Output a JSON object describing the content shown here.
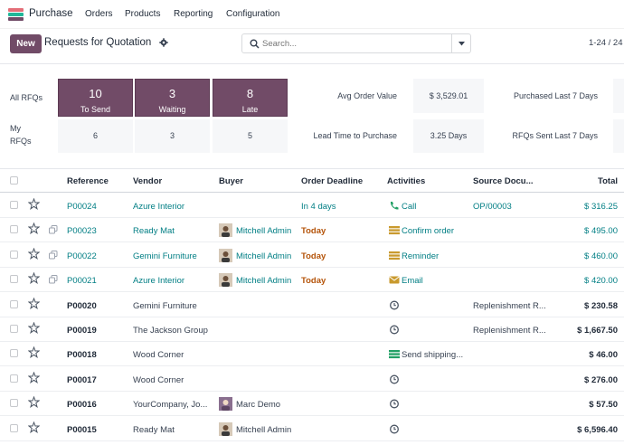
{
  "navbar": {
    "app_name": "Purchase",
    "menu": [
      "Orders",
      "Products",
      "Reporting",
      "Configuration"
    ]
  },
  "control_panel": {
    "new_label": "New",
    "title": "Requests for Quotation",
    "search_placeholder": "Search...",
    "pager": "1-24 / 24"
  },
  "dashboard": {
    "all_rfqs_label": "All RFQs",
    "my_rfqs_label_line1": "My",
    "my_rfqs_label_line2": "RFQs",
    "tiles": [
      {
        "count": "10",
        "label": "To Send"
      },
      {
        "count": "3",
        "label": "Waiting"
      },
      {
        "count": "8",
        "label": "Late"
      }
    ],
    "my_counts": [
      "6",
      "3",
      "5"
    ],
    "stats": {
      "avg_order_value_label": "Avg Order Value",
      "avg_order_value": "$ 3,529.01",
      "purchased_last_7_label": "Purchased Last 7 Days",
      "lead_time_label": "Lead Time to Purchase",
      "lead_time": "3.25 Days",
      "rfqs_sent_label": "RFQs Sent Last 7 Days"
    }
  },
  "table": {
    "headers": {
      "reference": "Reference",
      "vendor": "Vendor",
      "buyer": "Buyer",
      "deadline": "Order Deadline",
      "activities": "Activities",
      "source": "Source Docu...",
      "total": "Total"
    },
    "rows": [
      {
        "ref": "P00024",
        "vendor": "Azure Interior",
        "buyer": "",
        "deadline": "In 4 days",
        "activity": "Call",
        "activity_icon": "phone-icon",
        "source": "OP/00003",
        "total": "$ 316.25"
      },
      {
        "ref": "P00023",
        "vendor": "Ready Mat",
        "buyer": "Mitchell Admin",
        "deadline": "Today",
        "activity": "Confirm order",
        "activity_icon": "list-icon",
        "source": "",
        "total": "$ 495.00"
      },
      {
        "ref": "P00022",
        "vendor": "Gemini Furniture",
        "buyer": "Mitchell Admin",
        "deadline": "Today",
        "activity": "Reminder",
        "activity_icon": "list-icon",
        "source": "",
        "total": "$ 460.00"
      },
      {
        "ref": "P00021",
        "vendor": "Azure Interior",
        "buyer": "Mitchell Admin",
        "deadline": "Today",
        "activity": "Email",
        "activity_icon": "envelope-icon",
        "source": "",
        "total": "$ 420.00"
      },
      {
        "ref": "P00020",
        "vendor": "Gemini Furniture",
        "buyer": "",
        "deadline": "",
        "activity": "",
        "activity_icon": "clock-icon",
        "source": "Replenishment R...",
        "total": "$ 230.58"
      },
      {
        "ref": "P00019",
        "vendor": "The Jackson Group",
        "buyer": "",
        "deadline": "",
        "activity": "",
        "activity_icon": "clock-icon",
        "source": "Replenishment R...",
        "total": "$ 1,667.50"
      },
      {
        "ref": "P00018",
        "vendor": "Wood Corner",
        "buyer": "",
        "deadline": "",
        "activity": "Send shipping...",
        "activity_icon": "list-green-icon",
        "source": "",
        "total": "$ 46.00"
      },
      {
        "ref": "P00017",
        "vendor": "Wood Corner",
        "buyer": "",
        "deadline": "",
        "activity": "",
        "activity_icon": "clock-icon",
        "source": "",
        "total": "$ 276.00"
      },
      {
        "ref": "P00016",
        "vendor": "YourCompany, Jo...",
        "buyer": "Marc Demo",
        "deadline": "",
        "activity": "",
        "activity_icon": "clock-icon",
        "source": "",
        "total": "$ 57.50"
      },
      {
        "ref": "P00015",
        "vendor": "Ready Mat",
        "buyer": "Mitchell Admin",
        "deadline": "",
        "activity": "",
        "activity_icon": "clock-icon",
        "source": "",
        "total": "$ 6,596.40"
      }
    ]
  },
  "colors": {
    "brand": "#714b67",
    "link": "#017e84",
    "today": "#b45309"
  }
}
